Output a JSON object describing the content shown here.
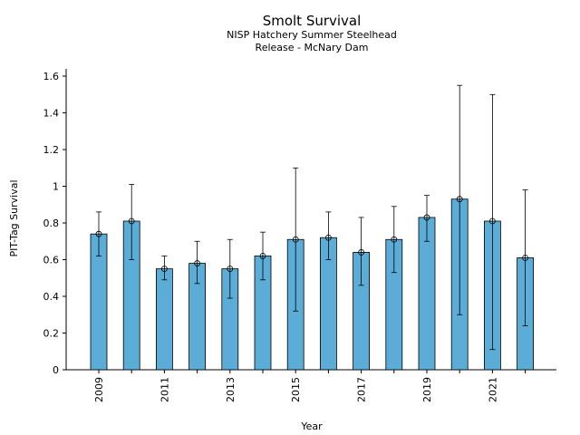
{
  "chart_data": {
    "type": "bar",
    "title": "Smolt Survival",
    "subtitle_lines": [
      "NISP Hatchery Summer Steelhead",
      "Release - McNary Dam"
    ],
    "xlabel": "Year",
    "ylabel": "PIT-Tag Survival",
    "categories": [
      "2009",
      "2010",
      "2011",
      "2012",
      "2013",
      "2014",
      "2015",
      "2016",
      "2017",
      "2018",
      "2019",
      "2020",
      "2021",
      "2022"
    ],
    "x_tick_labels": [
      "2009",
      "2011",
      "2013",
      "2015",
      "2017",
      "2019",
      "2021"
    ],
    "values": [
      0.74,
      0.81,
      0.55,
      0.58,
      0.55,
      0.62,
      0.71,
      0.72,
      0.64,
      0.71,
      0.83,
      0.93,
      0.81,
      0.61
    ],
    "error_low": [
      0.62,
      0.6,
      0.49,
      0.47,
      0.39,
      0.49,
      0.32,
      0.6,
      0.46,
      0.53,
      0.7,
      0.3,
      0.11,
      0.24
    ],
    "error_high": [
      0.86,
      1.01,
      0.62,
      0.7,
      0.71,
      0.75,
      1.1,
      0.86,
      0.83,
      0.89,
      0.95,
      1.55,
      1.5,
      0.98
    ],
    "ylim": [
      0,
      1.62
    ],
    "y_ticks": [
      0,
      0.2,
      0.4,
      0.6,
      0.8,
      1,
      1.2,
      1.4,
      1.6
    ],
    "y_tick_labels": [
      "0",
      "0.2",
      "0.4",
      "0.6",
      "0.8",
      "1",
      "1.2",
      "1.4",
      "1.6"
    ],
    "grid": false,
    "legend": "none",
    "colors": {
      "bar": "#5bacd6",
      "edge": "#000000"
    }
  }
}
